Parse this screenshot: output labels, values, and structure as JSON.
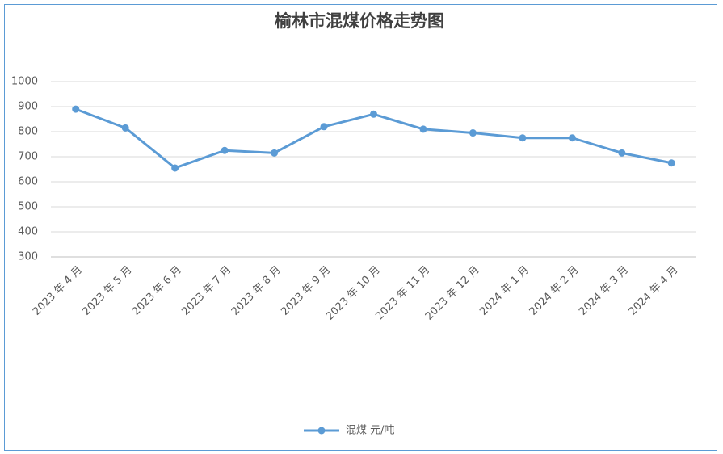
{
  "chart_data": {
    "type": "line",
    "title": "榆林市混煤价格走势图",
    "categories": [
      "2023 年 4 月",
      "2023 年 5 月",
      "2023 年 6 月",
      "2023 年 7 月",
      "2023 年 8 月",
      "2023 年 9 月",
      "2023 年 10 月",
      "2023 年 11 月",
      "2023 年 12 月",
      "2024 年 1 月",
      "2024 年 2 月",
      "2024 年 3 月",
      "2024 年 4 月"
    ],
    "series": [
      {
        "name": "混煤 元/吨",
        "color": "#5b9bd5",
        "values": [
          890,
          815,
          655,
          725,
          715,
          820,
          870,
          810,
          795,
          775,
          775,
          715,
          675
        ]
      }
    ],
    "ylim": [
      300,
      1000
    ],
    "yticks": [
      300,
      400,
      500,
      600,
      700,
      800,
      900,
      1000
    ],
    "grid": true,
    "legend": "bottom"
  }
}
